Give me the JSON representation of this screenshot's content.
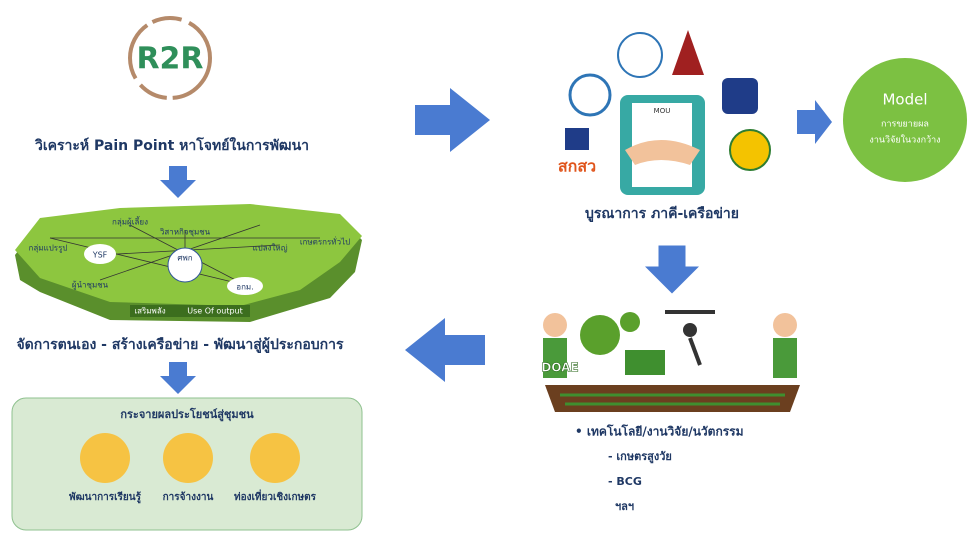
{
  "logo": "R2R",
  "step1": "วิเคราะห์ Pain Point หาโจทย์ในการพัฒนา",
  "network": {
    "nodes": [
      "กลุ่มแปรรูป",
      "กลุ่มผู้เลี้ยง",
      "วิสาหกิจชุมชน",
      "แปลงใหญ่",
      "เกษตรกรทั่วไป",
      "YSF",
      "ศพก",
      "ผู้นำชุมชน",
      "อกม."
    ],
    "left_label": "เสริมพลัง",
    "right_label": "Use Of output"
  },
  "step2": "จัดการตนเอง - สร้างเครือข่าย - พัฒนาสู่ผู้ประกอบการ",
  "benefits": {
    "title": "กระจายผลประโยชน์สู่ชุมชน",
    "items": [
      "พัฒนาการเรียนรู้",
      "การจ้างงาน",
      "ท่องเที่ยวเชิงเกษตร"
    ]
  },
  "partners": {
    "logo1": "สกสว",
    "mou": "MOU",
    "caption": "บูรณาการ ภาคี-เครือข่าย"
  },
  "model": {
    "title": "Model",
    "line1": "การขยายผล",
    "line2": "งานวิจัยในวงกว้าง"
  },
  "farm": {
    "logo": "DOAE"
  },
  "tech": {
    "heading": "• เทคโนโลยี/งานวิจัย/นวัตกรรม",
    "items": [
      "- เกษตรสูงวัย",
      "- BCG",
      "ฯลฯ"
    ]
  }
}
